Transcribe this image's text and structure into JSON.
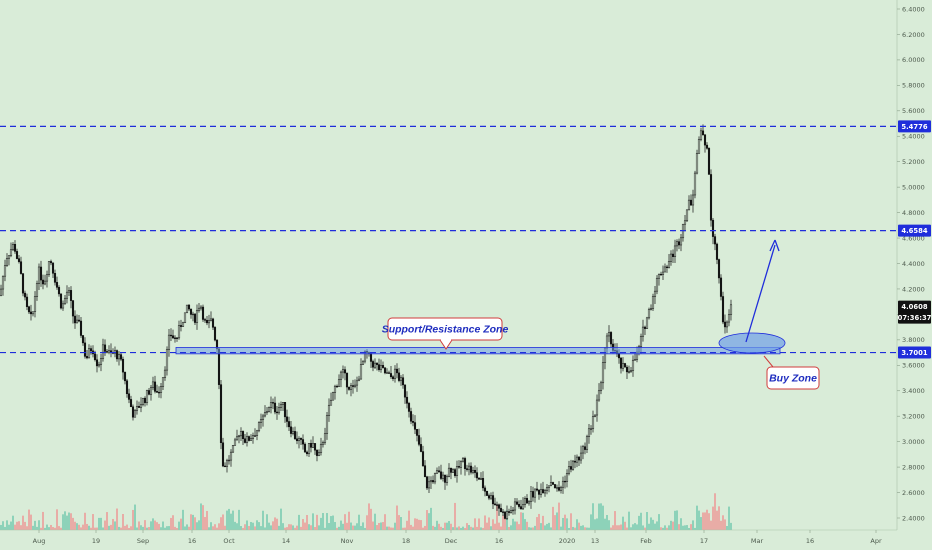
{
  "colors": {
    "background": "#d9ecd8",
    "candle": "#111111",
    "level_line": "#1f2ddb",
    "zone_fill": "#6f9fe8",
    "callout_border": "#d03b3b",
    "callout_text": "#1f2dbf",
    "volume_up": "#63c3a8",
    "volume_down": "#f08a8a",
    "label_blue": "#1f2ddb",
    "label_black": "#111111"
  },
  "chart_data": {
    "type": "candlestick",
    "y_axis": {
      "side": "right",
      "ylim": [
        2.35,
        6.45
      ],
      "ticks": [
        "6.4000",
        "6.2000",
        "6.0000",
        "5.8000",
        "5.6000",
        "5.4000",
        "5.2000",
        "5.0000",
        "4.8000",
        "4.6000",
        "4.4000",
        "4.2000",
        "4.0000",
        "3.8000",
        "3.6000",
        "3.4000",
        "3.2000",
        "3.0000",
        "2.8000",
        "2.6000",
        "2.4000"
      ]
    },
    "x_axis": {
      "ticks": [
        "Aug",
        "19",
        "Sep",
        "16",
        "Oct",
        "14",
        "Nov",
        "18",
        "Dec",
        "16",
        "2020",
        "13",
        "Feb",
        "17",
        "Mar",
        "16",
        "Apr"
      ]
    },
    "price_labels": [
      {
        "text": "5.4776",
        "value": 5.4776,
        "style": "blue"
      },
      {
        "text": "4.6584",
        "value": 4.6584,
        "style": "blue"
      },
      {
        "text": "4.0608",
        "value": 4.0608,
        "style": "black"
      },
      {
        "text": "07:36:37",
        "value": 3.975,
        "style": "black"
      },
      {
        "text": "3.7001",
        "value": 3.7001,
        "style": "blue"
      }
    ],
    "horizontal_levels": [
      5.4776,
      4.6584,
      3.7001
    ],
    "support_resistance_zone": [
      3.69,
      3.74
    ],
    "annotations": [
      {
        "text": "Support/Resistance Zone"
      },
      {
        "text": "Buy Zone"
      }
    ],
    "price_path_keypoints": [
      [
        0,
        4.15
      ],
      [
        6,
        4.45
      ],
      [
        14,
        4.55
      ],
      [
        20,
        4.35
      ],
      [
        26,
        4.05
      ],
      [
        32,
        3.95
      ],
      [
        38,
        4.35
      ],
      [
        44,
        4.25
      ],
      [
        50,
        4.45
      ],
      [
        56,
        4.25
      ],
      [
        62,
        4.05
      ],
      [
        68,
        4.2
      ],
      [
        74,
        3.95
      ],
      [
        80,
        3.9
      ],
      [
        86,
        3.65
      ],
      [
        92,
        3.75
      ],
      [
        98,
        3.6
      ],
      [
        104,
        3.75
      ],
      [
        110,
        3.68
      ],
      [
        116,
        3.7
      ],
      [
        122,
        3.6
      ],
      [
        128,
        3.35
      ],
      [
        134,
        3.2
      ],
      [
        140,
        3.3
      ],
      [
        146,
        3.35
      ],
      [
        152,
        3.45
      ],
      [
        158,
        3.38
      ],
      [
        164,
        3.55
      ],
      [
        170,
        3.85
      ],
      [
        176,
        3.8
      ],
      [
        182,
        3.95
      ],
      [
        188,
        4.05
      ],
      [
        194,
        3.95
      ],
      [
        200,
        4.1
      ],
      [
        206,
        3.9
      ],
      [
        212,
        3.95
      ],
      [
        218,
        3.7
      ],
      [
        222,
        2.8
      ],
      [
        228,
        2.85
      ],
      [
        234,
        2.95
      ],
      [
        240,
        3.1
      ],
      [
        246,
        3.0
      ],
      [
        252,
        3.05
      ],
      [
        258,
        3.1
      ],
      [
        264,
        3.2
      ],
      [
        270,
        3.3
      ],
      [
        276,
        3.25
      ],
      [
        282,
        3.3
      ],
      [
        288,
        3.15
      ],
      [
        294,
        3.05
      ],
      [
        300,
        3.0
      ],
      [
        306,
        2.9
      ],
      [
        312,
        3.0
      ],
      [
        318,
        2.85
      ],
      [
        324,
        3.05
      ],
      [
        330,
        3.3
      ],
      [
        336,
        3.45
      ],
      [
        342,
        3.55
      ],
      [
        348,
        3.45
      ],
      [
        354,
        3.4
      ],
      [
        360,
        3.55
      ],
      [
        366,
        3.7
      ],
      [
        372,
        3.62
      ],
      [
        378,
        3.58
      ],
      [
        384,
        3.55
      ],
      [
        390,
        3.5
      ],
      [
        396,
        3.55
      ],
      [
        402,
        3.45
      ],
      [
        408,
        3.3
      ],
      [
        414,
        3.1
      ],
      [
        420,
        2.95
      ],
      [
        426,
        2.65
      ],
      [
        432,
        2.7
      ],
      [
        438,
        2.75
      ],
      [
        444,
        2.7
      ],
      [
        450,
        2.8
      ],
      [
        456,
        2.75
      ],
      [
        462,
        2.85
      ],
      [
        468,
        2.8
      ],
      [
        474,
        2.75
      ],
      [
        480,
        2.7
      ],
      [
        486,
        2.6
      ],
      [
        492,
        2.55
      ],
      [
        498,
        2.5
      ],
      [
        504,
        2.42
      ],
      [
        510,
        2.45
      ],
      [
        516,
        2.5
      ],
      [
        522,
        2.5
      ],
      [
        528,
        2.55
      ],
      [
        534,
        2.6
      ],
      [
        540,
        2.62
      ],
      [
        546,
        2.65
      ],
      [
        552,
        2.7
      ],
      [
        558,
        2.6
      ],
      [
        564,
        2.7
      ],
      [
        570,
        2.8
      ],
      [
        576,
        2.85
      ],
      [
        582,
        2.9
      ],
      [
        588,
        3.05
      ],
      [
        594,
        3.2
      ],
      [
        600,
        3.45
      ],
      [
        604,
        3.65
      ],
      [
        608,
        3.85
      ],
      [
        612,
        3.75
      ],
      [
        616,
        3.7
      ],
      [
        620,
        3.6
      ],
      [
        626,
        3.55
      ],
      [
        632,
        3.6
      ],
      [
        638,
        3.7
      ],
      [
        644,
        3.9
      ],
      [
        650,
        4.05
      ],
      [
        656,
        4.25
      ],
      [
        662,
        4.35
      ],
      [
        668,
        4.4
      ],
      [
        674,
        4.5
      ],
      [
        680,
        4.6
      ],
      [
        684,
        4.75
      ],
      [
        688,
        4.85
      ],
      [
        692,
        4.9
      ],
      [
        696,
        5.2
      ],
      [
        700,
        5.45
      ],
      [
        704,
        5.35
      ],
      [
        708,
        5.3
      ],
      [
        711,
        4.75
      ],
      [
        714,
        4.6
      ],
      [
        717,
        4.45
      ],
      [
        720,
        4.2
      ],
      [
        724,
        3.9
      ],
      [
        728,
        4.0
      ],
      [
        732,
        4.06
      ]
    ]
  }
}
